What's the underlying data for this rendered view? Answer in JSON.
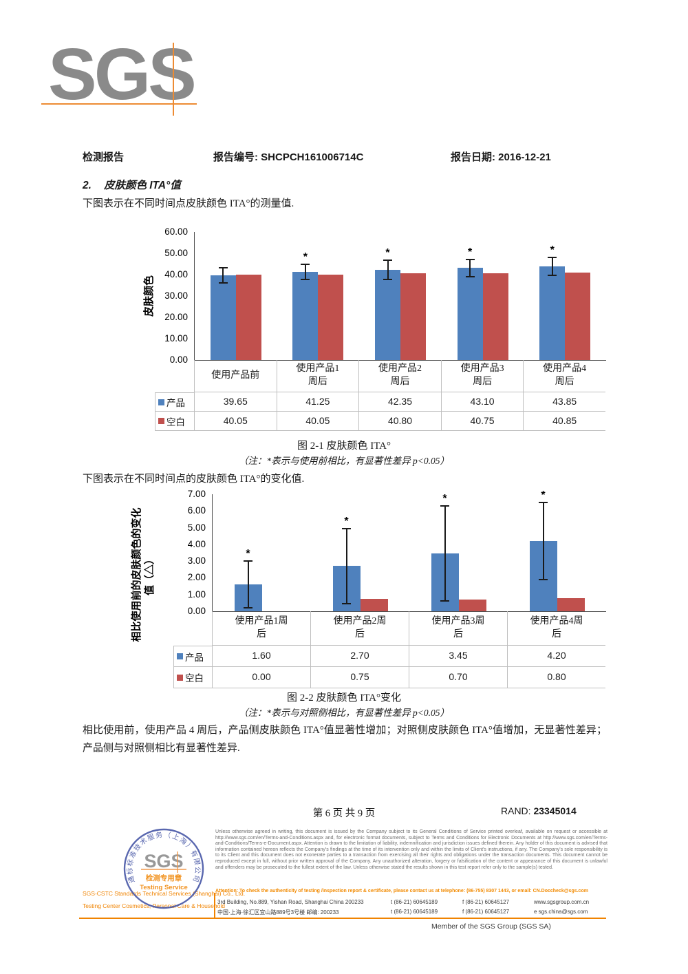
{
  "header": {
    "logo_text": "SGS",
    "report_type": "检测报告",
    "report_no_label": "报告编号:",
    "report_no": "SHCPCH161006714C",
    "report_date_label": "报告日期:",
    "report_date": "2016-12-21"
  },
  "section": {
    "heading_no": "2.",
    "heading_text": "皮肤颜色 ITA°值",
    "intro1": "下图表示在不同时间点皮肤颜色 ITA°的测量值.",
    "intro2": "下图表示在不同时间点的皮肤颜色 ITA°的变化值.",
    "conclusion": "相比使用前，使用产品 4 周后，产品侧皮肤颜色 ITA°值显著性增加；对照侧皮肤颜色 ITA°值增加，无显著性差异；产品侧与对照侧相比有显著性差异."
  },
  "chart_data": [
    {
      "type": "bar",
      "title": "图 2-1 皮肤颜色 ITA°",
      "note": "（注：*表示与使用前相比，有显著性差异 p<0.05）",
      "ylabel": "皮肤颜色",
      "ylabel_lines": [
        "皮肤颜色"
      ],
      "ylim": [
        0,
        60
      ],
      "ytick_step": 10,
      "grid": false,
      "legend_position": "table-left",
      "categories": [
        "使用产品前",
        "使用产品1周后",
        "使用产品2周后",
        "使用产品3周后",
        "使用产品4周后"
      ],
      "series": [
        {
          "name": "产品",
          "color": "#4F81BD",
          "values": [
            39.65,
            41.25,
            42.35,
            43.1,
            43.85
          ],
          "error_bars": [
            3.45,
            3.6,
            4.5,
            3.9,
            4.2
          ],
          "significant": [
            false,
            true,
            true,
            true,
            true
          ]
        },
        {
          "name": "空白",
          "color": "#C0504D",
          "values": [
            40.05,
            40.05,
            40.8,
            40.75,
            40.85
          ]
        }
      ]
    },
    {
      "type": "bar",
      "title": "图 2-2 皮肤颜色 ITA°变化",
      "note": "（注：*表示与对照侧相比，有显著性差异 p<0.05）",
      "ylabel": "相比使用前的皮肤颜色的变化值（△）",
      "ylabel_lines": [
        "相比使用前的皮肤颜色的变化",
        "值（△）"
      ],
      "ylim": [
        0,
        7
      ],
      "ytick_step": 1,
      "grid": false,
      "legend_position": "table-left",
      "categories": [
        "使用产品1周后",
        "使用产品2周后",
        "使用产品3周后",
        "使用产品4周后"
      ],
      "series": [
        {
          "name": "产品",
          "color": "#4F81BD",
          "values": [
            1.6,
            2.7,
            3.45,
            4.2
          ],
          "error_bars": [
            1.4,
            2.25,
            2.85,
            2.3
          ],
          "significant": [
            true,
            true,
            true,
            true
          ]
        },
        {
          "name": "空白",
          "color": "#C0504D",
          "values": [
            0.0,
            0.75,
            0.7,
            0.8
          ]
        }
      ]
    }
  ],
  "footer": {
    "page_text": "第 6 页 共 9 页",
    "rand_label": "RAND:",
    "rand_value": "23345014"
  },
  "bottom": {
    "seal": {
      "ring_text": "通标标准技术服务（上海）有限公司",
      "sgs": "SGS",
      "line1": "检测专用章",
      "line2": "Testing Service"
    },
    "company_line1": "SGS-CSTC Standards Technical Services (Shanghai) Co., Ltd.",
    "company_line2": "Testing Center Cosmetics, Personal Care & Household",
    "legal": "Unless otherwise agreed in writing, this document is issued by the Company subject to its General Conditions of Service printed overleaf, available on request or accessible at http://www.sgs.com/en/Terms-and-Conditions.aspx and, for electronic format documents, subject to Terms and Conditions for Electronic Documents at http://www.sgs.com/en/Terms-and-Conditions/Terms-e-Document.aspx. Attention is drawn to the limitation of liability, indemnification and jurisdiction issues defined therein. Any holder of this document is advised that information contained hereon reflects the Company's findings at the time of its intervention only and within the limits of Client's instructions, if any. The Company's sole responsibility is to its Client and this document does not exonerate parties to a transaction from exercising all their rights and obligations under the transaction documents. This document cannot be reproduced except in full, without prior written approval of the Company. Any unauthorized alteration, forgery or falsification of the content or appearance of this document is unlawful and offenders may be prosecuted to the fullest extent of the law. Unless otherwise stated the results shown in this test report refer only to the sample(s) tested.",
    "attention": "Attention: To check the authenticity of testing /inspection report & certificate, please contact us at telephone: (86-755) 8307 1443, or email: CN.Doccheck@sgs.com",
    "address_en": "3rd Building, No.889, Yishan Road, Shanghai China  200233",
    "address_cn": "中国·上海·徐汇区宜山路889号3号楼  邮编: 200233",
    "tel": "t  (86-21) 60645189",
    "fax": "f  (86-21) 60645127",
    "web": "www.sgsgroup.com.cn",
    "email": "e  sgs.china@sgs.com",
    "member": "Member of the SGS Group (SGS SA)"
  },
  "colors": {
    "series_product": "#4F81BD",
    "series_blank": "#C0504D",
    "accent_orange": "#F08300",
    "seal_blue": "#4353A4",
    "logo_gray": "#8A8A8A"
  }
}
